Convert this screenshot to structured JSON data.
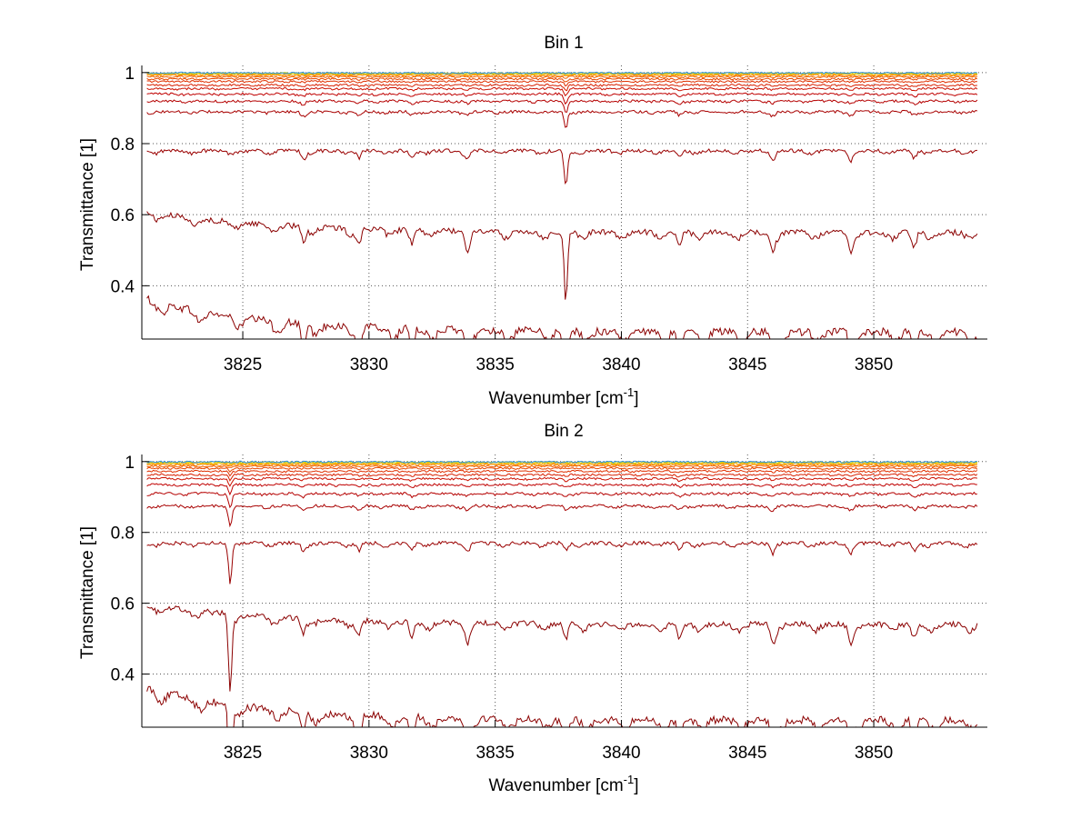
{
  "figure": {
    "background": "#ffffff"
  },
  "chart_data": [
    {
      "type": "line",
      "title": "Bin 1",
      "xlabel": "Wavenumber [cm",
      "xlabel_sup": "-1",
      "xlabel_close": "]",
      "ylabel": "Transmittance [1]",
      "xlim": [
        3821,
        3854.5
      ],
      "ylim": [
        0.25,
        1.02
      ],
      "xticks": [
        3825,
        3830,
        3835,
        3840,
        3845,
        3850
      ],
      "xtick_labels": [
        "3825",
        "3830",
        "3835",
        "3840",
        "3845",
        "3850"
      ],
      "yticks": [
        0.4,
        0.6,
        0.8,
        1.0
      ],
      "ytick_labels": [
        "0.4",
        "0.6",
        "0.8",
        "1"
      ],
      "grid": true,
      "strong_line_at": 3837.8,
      "series_levels": [
        0.27,
        0.55,
        0.78,
        0.89,
        0.92,
        0.94,
        0.955,
        0.965,
        0.975,
        0.982,
        0.988,
        0.992,
        0.995,
        0.997,
        0.998,
        0.999
      ],
      "series_colors": [
        "#8b0000",
        "#8b0000",
        "#9a0000",
        "#a80000",
        "#b50000",
        "#c00000",
        "#cc1000",
        "#d82000",
        "#e03000",
        "#e84800",
        "#f06000",
        "#f58000",
        "#f8a000",
        "#f0c000",
        "#c0d020",
        "#3090e0"
      ]
    },
    {
      "type": "line",
      "title": "Bin 2",
      "xlabel": "Wavenumber [cm",
      "xlabel_sup": "-1",
      "xlabel_close": "]",
      "ylabel": "Transmittance [1]",
      "xlim": [
        3821,
        3854.5
      ],
      "ylim": [
        0.25,
        1.02
      ],
      "xticks": [
        3825,
        3830,
        3835,
        3840,
        3845,
        3850
      ],
      "xtick_labels": [
        "3825",
        "3830",
        "3835",
        "3840",
        "3845",
        "3850"
      ],
      "yticks": [
        0.4,
        0.6,
        0.8,
        1.0
      ],
      "ytick_labels": [
        "0.4",
        "0.6",
        "0.8",
        "1"
      ],
      "grid": true,
      "strong_line_at": 3824.5,
      "series_levels": [
        0.27,
        0.54,
        0.77,
        0.875,
        0.91,
        0.935,
        0.952,
        0.963,
        0.973,
        0.981,
        0.987,
        0.991,
        0.994,
        0.996,
        0.998,
        0.999
      ],
      "series_colors": [
        "#8b0000",
        "#8b0000",
        "#9a0000",
        "#a80000",
        "#b50000",
        "#c00000",
        "#cc1000",
        "#d82000",
        "#e03000",
        "#e84800",
        "#f06000",
        "#f58000",
        "#f8a000",
        "#f0c000",
        "#c0d020",
        "#3090e0"
      ]
    }
  ]
}
